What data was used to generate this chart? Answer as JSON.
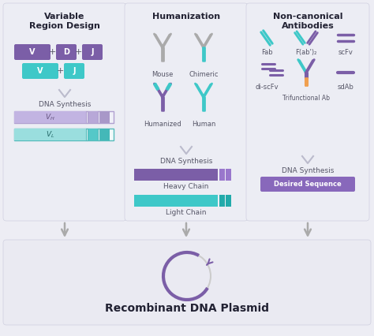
{
  "bg_color": "#ededf4",
  "panel_bg": "#ecedf4",
  "bottom_bg": "#eaeaf2",
  "purple": "#7b5ea7",
  "light_purple": "#c2b4e2",
  "teal": "#3ec8c8",
  "light_teal": "#9adede",
  "orange": "#f0a050",
  "gray_ab": "#aaaaaa",
  "dark_gray": "#555566",
  "text_color": "#444455",
  "title_color": "#222233",
  "arrow_color": "#aaaaaa",
  "panel1_title": "Variable\nRegion Design",
  "panel2_title": "Humanization",
  "panel3_title": "Non-canonical\nAntibodies",
  "bottom_title": "Recombinant DNA Plasmid"
}
